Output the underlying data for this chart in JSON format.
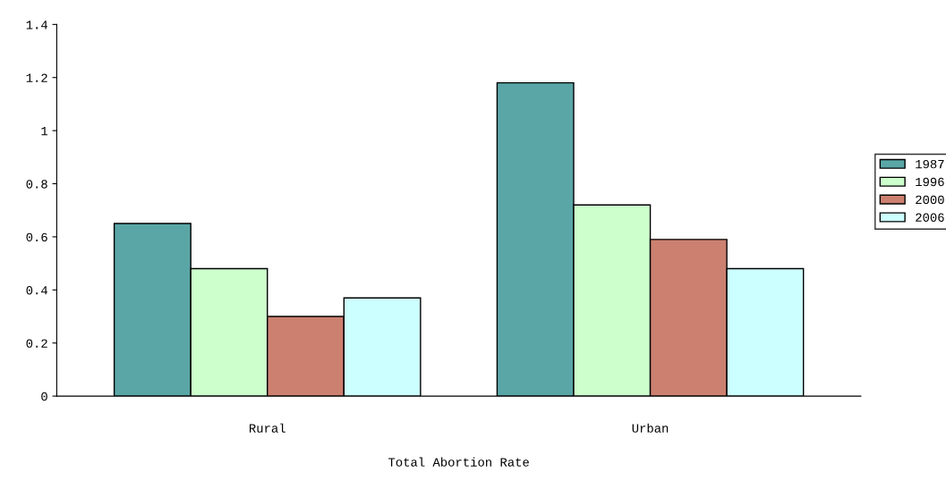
{
  "chart_data": {
    "type": "bar",
    "xlabel": "Total Abortion Rate",
    "categories": [
      "Rural",
      "Urban"
    ],
    "series": [
      {
        "name": "1987",
        "color": "#5aa6a6",
        "values": [
          0.65,
          1.18
        ]
      },
      {
        "name": "1996",
        "color": "#ccffcc",
        "values": [
          0.48,
          0.72
        ]
      },
      {
        "name": "2000",
        "color": "#cc8070",
        "values": [
          0.3,
          0.59
        ]
      },
      {
        "name": "2006",
        "color": "#ccffff",
        "values": [
          0.37,
          0.48
        ]
      }
    ],
    "ylim": [
      0,
      1.4
    ],
    "yticks": [
      0,
      {
        "value": 0.2,
        "label": "0.2"
      },
      {
        "value": 0.4,
        "label": "0.4"
      },
      {
        "value": 0.6,
        "label": "0.6"
      },
      {
        "value": 0.8,
        "label": "0.8"
      },
      1,
      {
        "value": 1.2,
        "label": "1.2"
      },
      {
        "value": 1.4,
        "label": "1.4"
      }
    ],
    "grid": false,
    "legend": "right"
  }
}
